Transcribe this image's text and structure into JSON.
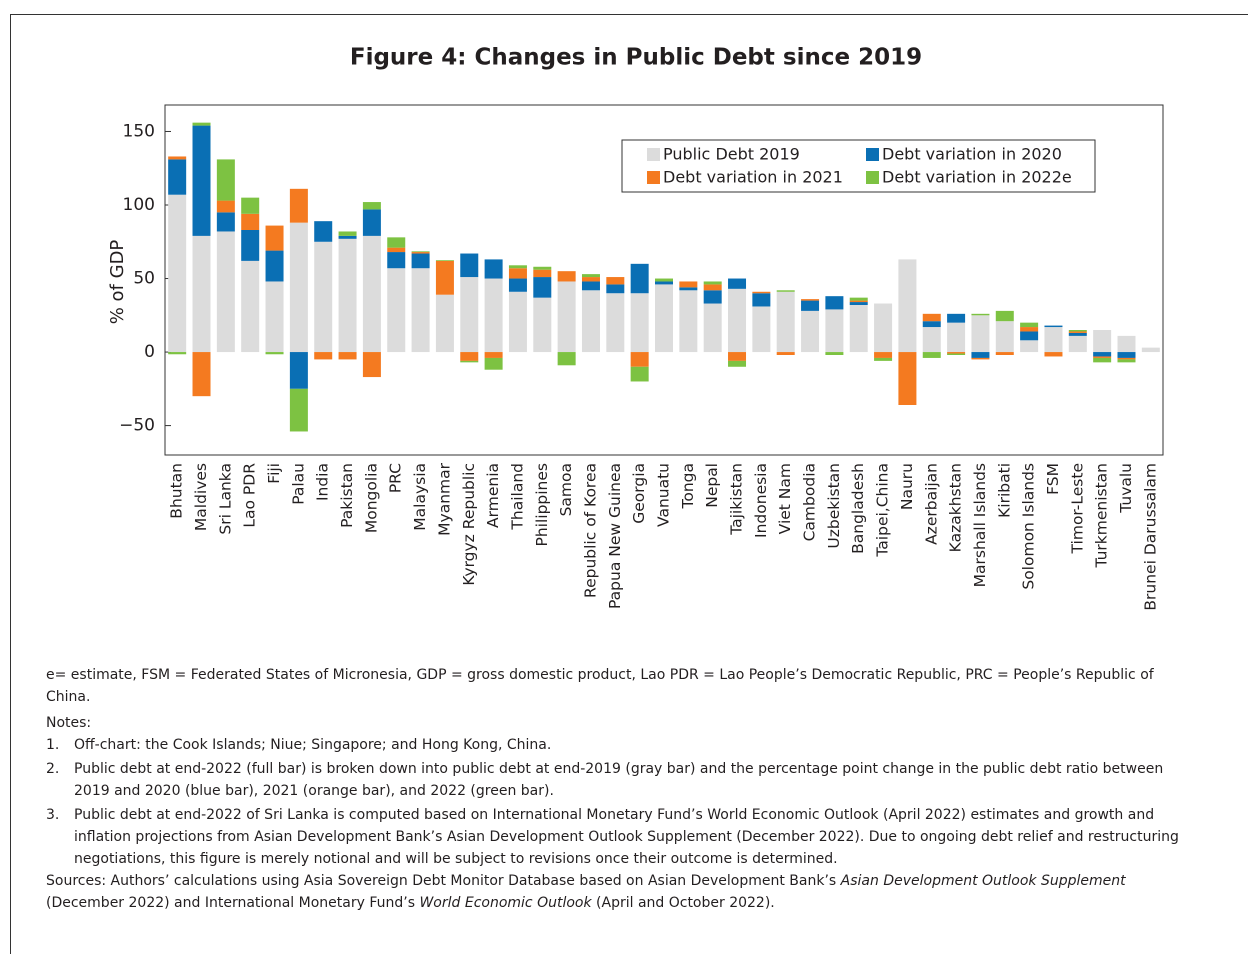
{
  "chart_data": {
    "type": "stacked_bar",
    "title": "Figure 4: Changes in Public Debt since 2019",
    "y_label": "% of GDP",
    "categories": [
      "Bhutan",
      "Maldives",
      "Sri Lanka",
      "Lao PDR",
      "Fiji",
      "Palau",
      "India",
      "Pakistan",
      "Mongolia",
      "PRC",
      "Malaysia",
      "Myanmar",
      "Kyrgyz Republic",
      "Armenia",
      "Thailand",
      "Philippines",
      "Samoa",
      "Republic of Korea",
      "Papua New Guinea",
      "Georgia",
      "Vanuatu",
      "Tonga",
      "Nepal",
      "Tajikistan",
      "Indonesia",
      "Viet Nam",
      "Cambodia",
      "Uzbekistan",
      "Bangladesh",
      "Taipei,China",
      "Nauru",
      "Azerbaijan",
      "Kazakhstan",
      "Marshall Islands",
      "Kiribati",
      "Solomon Islands",
      "FSM",
      "Timor-Leste",
      "Turkmenistan",
      "Tuvalu",
      "Brunei Darussalam"
    ],
    "series": [
      {
        "name": "Public Debt 2019",
        "color": "#dcdcdc",
        "values": [
          107,
          79,
          82,
          62,
          48,
          88,
          75,
          77,
          79,
          57,
          57,
          39,
          51,
          50,
          41,
          37,
          48,
          42,
          40,
          40,
          46,
          42,
          33,
          43,
          31,
          41,
          28,
          29,
          32,
          33,
          63,
          17,
          20,
          25,
          21,
          8,
          17,
          11,
          15,
          11,
          3
        ]
      },
      {
        "name": "Debt variation in 2020",
        "color": "#0a6fb4",
        "values": [
          24,
          75,
          13,
          21,
          21,
          -25,
          14,
          2,
          18,
          11,
          10,
          0,
          16,
          13,
          9,
          14,
          0,
          6,
          6,
          20,
          2,
          2,
          9,
          7,
          9,
          0,
          7,
          9,
          2,
          0,
          0,
          4,
          6,
          -4,
          0,
          6,
          1,
          2,
          -3,
          -4,
          0
        ]
      },
      {
        "name": "Debt variation in 2021",
        "color": "#f47a20",
        "values": [
          2,
          -30,
          8,
          11,
          17,
          23,
          -5,
          -5,
          -17,
          3,
          1,
          23,
          -6,
          -4,
          7,
          5,
          7,
          3,
          5,
          -10,
          0,
          4,
          4,
          -6,
          1,
          -2,
          1,
          0,
          1,
          -4,
          -36,
          5,
          -1,
          -1,
          -2,
          3,
          -3,
          1,
          -1,
          -1,
          0
        ]
      },
      {
        "name": "Debt variation in 2022e",
        "color": "#7dc242",
        "values": [
          -1.5,
          2,
          28,
          11,
          -1.5,
          -29,
          0,
          3,
          5,
          7,
          0.5,
          0.5,
          -1,
          -8,
          2,
          2,
          -9,
          2,
          0,
          -10,
          2,
          0,
          2,
          -4,
          0,
          1,
          0,
          -2,
          2,
          -2,
          0,
          -4,
          -1,
          1,
          7,
          3,
          0,
          1,
          -3,
          -2,
          0
        ]
      }
    ],
    "ylim": [
      -70,
      168
    ],
    "yticks": [
      {
        "value": -50,
        "label": "−50"
      },
      0,
      50,
      100,
      150
    ],
    "legend": "upper right"
  },
  "footnote": "e= estimate, FSM = Federated States of Micronesia, GDP = gross domestic product, Lao PDR = Lao People’s Democratic Republic, PRC = People’s Republic of China.",
  "notes_heading": "Notes:",
  "notes": [
    {
      "number": "1.",
      "text": "Off-chart: the Cook Islands; Niue; Singapore; and Hong Kong, China."
    },
    {
      "number": "2.",
      "text": "Public debt at end-2022 (full bar) is broken down into public debt at end-2019 (gray bar) and the percentage point change in the public debt ratio between 2019 and 2020 (blue bar), 2021 (orange bar), and 2022 (green bar)."
    },
    {
      "number": "3.",
      "text": "Public debt at end-2022 of Sri Lanka is computed based on International Monetary Fund’s World Economic Outlook (April 2022) estimates and growth and inflation projections from Asian Development Bank’s Asian Development Outlook Supplement (December 2022). Due to ongoing debt relief and restructuring negotiations, this figure is merely notional and will be subject to revisions once their outcome is determined."
    }
  ],
  "sources": [
    "Sources: Authors’ calculations using Asia Sovereign Debt Monitor Database based on Asian Development Bank’s ",
    "Asian Development Outlook Supplement",
    " (December 2022) and International Monetary Fund’s ",
    "World Economic Outlook",
    " (April and October 2022)."
  ]
}
